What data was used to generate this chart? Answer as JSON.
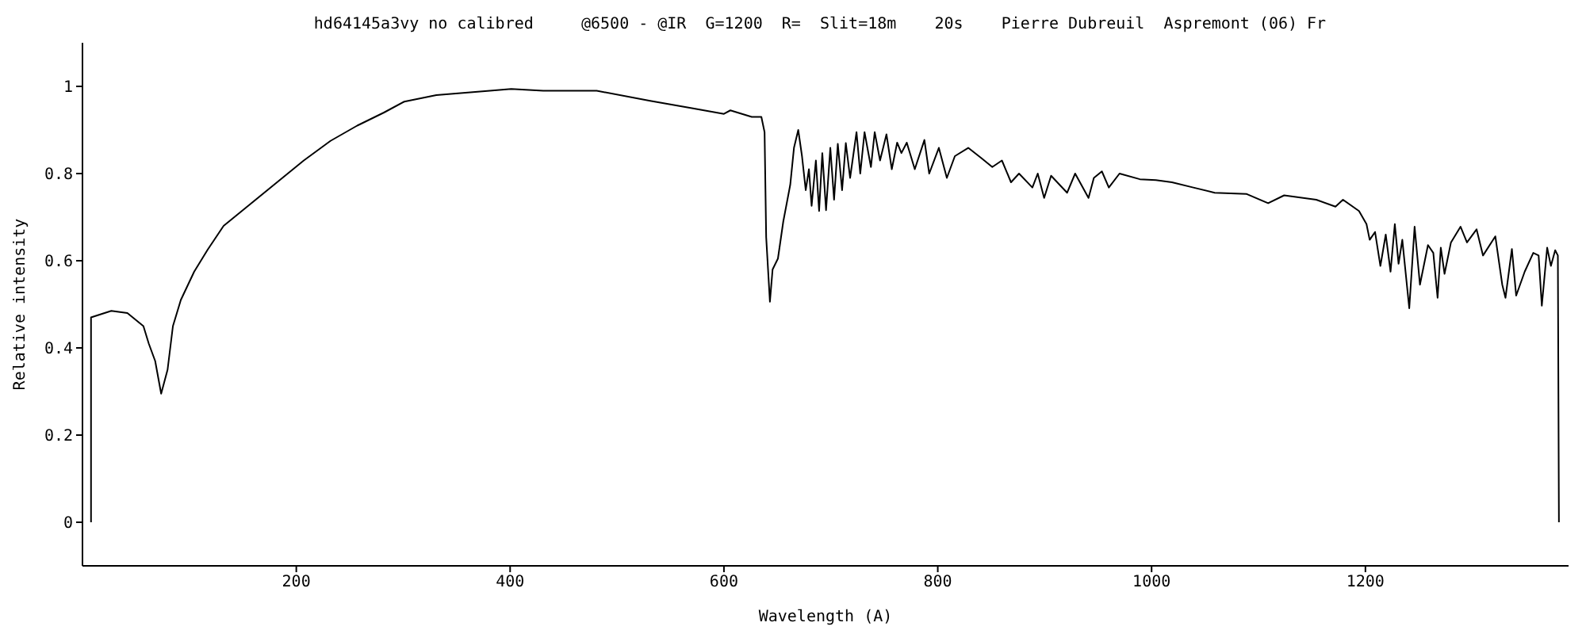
{
  "chart_data": {
    "type": "line",
    "title": "hd64145a3vy no calibred     @6500 - @IR  G=1200  R=  Slit=18m    20s    Pierre Dubreuil  Aspremont (06) Fr",
    "xlabel": "Wavelength (A)",
    "ylabel": "Relative intensity",
    "xlim": [
      0,
      1390
    ],
    "xticks": [
      200,
      400,
      600,
      800,
      1000,
      1200
    ],
    "ylim": [
      -0.1,
      1.1
    ],
    "yticks": [
      0,
      0.2,
      0.4,
      0.6,
      0.8,
      1
    ],
    "series": [
      {
        "color": "#000000",
        "x": [
          8,
          8,
          27,
          42,
          57,
          62,
          68,
          73.6,
          79.6,
          84.6,
          92,
          104.5,
          117,
          132,
          157,
          182,
          207,
          232,
          257,
          282,
          301,
          331,
          381,
          401,
          431,
          481,
          531,
          570,
          600,
          606,
          626,
          635,
          638,
          639.5,
          643,
          645.5,
          650.5,
          655.5,
          662,
          665.5,
          669.5,
          673,
          676.5,
          679.5,
          682,
          686,
          689,
          692,
          695.5,
          699.5,
          703,
          706.5,
          710.5,
          714,
          718,
          724,
          727.5,
          731.5,
          737.5,
          741,
          746,
          752,
          757,
          762,
          766,
          771,
          778.5,
          787.5,
          792,
          801,
          808.5,
          816,
          828.5,
          841,
          851,
          860,
          868.5,
          876,
          888.5,
          893.5,
          899.5,
          906,
          921,
          928.5,
          941,
          946,
          953.5,
          960,
          970,
          989,
          1004,
          1019,
          1039,
          1059,
          1089,
          1109,
          1124,
          1154,
          1172,
          1179,
          1194,
          1201,
          1204,
          1209,
          1214,
          1219,
          1223.5,
          1227.5,
          1231,
          1234.5,
          1241,
          1246,
          1251,
          1258.5,
          1263.5,
          1267.5,
          1270.5,
          1274,
          1280,
          1289,
          1295,
          1304,
          1310,
          1321.5,
          1328,
          1331,
          1337,
          1341,
          1349,
          1357,
          1362,
          1365,
          1370,
          1373.5,
          1377.5,
          1380,
          1381
        ],
        "values": [
          0,
          0.47,
          0.485,
          0.48,
          0.45,
          0.41,
          0.37,
          0.295,
          0.35,
          0.45,
          0.51,
          0.575,
          0.625,
          0.68,
          0.73,
          0.78,
          0.83,
          0.875,
          0.91,
          0.94,
          0.965,
          0.98,
          0.99,
          0.994,
          0.99,
          0.99,
          0.967,
          0.95,
          0.937,
          0.945,
          0.93,
          0.93,
          0.895,
          0.654,
          0.506,
          0.58,
          0.605,
          0.69,
          0.774,
          0.859,
          0.9,
          0.84,
          0.762,
          0.81,
          0.726,
          0.83,
          0.714,
          0.847,
          0.716,
          0.859,
          0.74,
          0.868,
          0.762,
          0.87,
          0.79,
          0.895,
          0.8,
          0.895,
          0.815,
          0.895,
          0.83,
          0.89,
          0.81,
          0.871,
          0.847,
          0.871,
          0.81,
          0.877,
          0.8,
          0.859,
          0.79,
          0.84,
          0.859,
          0.835,
          0.815,
          0.83,
          0.78,
          0.8,
          0.768,
          0.8,
          0.744,
          0.795,
          0.756,
          0.8,
          0.744,
          0.79,
          0.805,
          0.768,
          0.8,
          0.787,
          0.785,
          0.78,
          0.768,
          0.756,
          0.753,
          0.732,
          0.75,
          0.74,
          0.724,
          0.74,
          0.714,
          0.684,
          0.648,
          0.666,
          0.588,
          0.66,
          0.575,
          0.684,
          0.593,
          0.648,
          0.491,
          0.678,
          0.545,
          0.636,
          0.618,
          0.515,
          0.63,
          0.57,
          0.642,
          0.678,
          0.642,
          0.672,
          0.612,
          0.656,
          0.545,
          0.515,
          0.627,
          0.52,
          0.575,
          0.618,
          0.612,
          0.497,
          0.63,
          0.588,
          0.624,
          0.612,
          0
        ]
      }
    ]
  }
}
